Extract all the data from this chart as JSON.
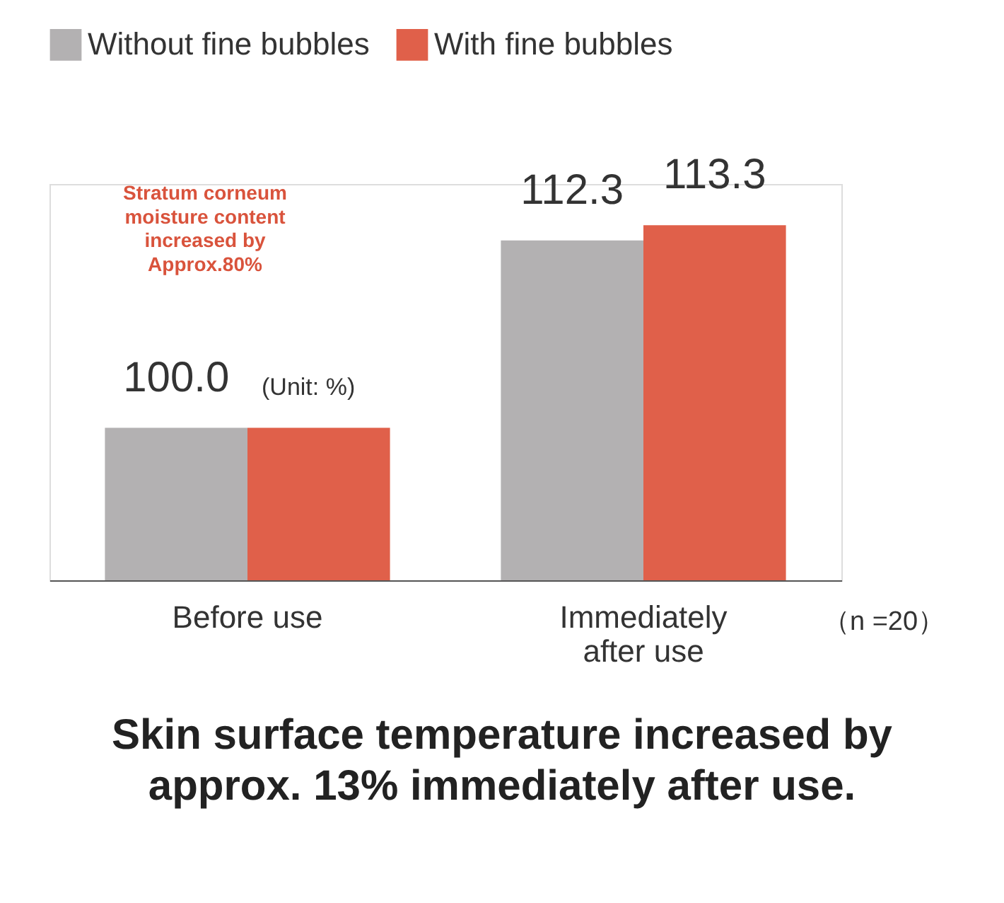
{
  "chart_data": {
    "type": "bar",
    "categories": [
      "Before use",
      "Immediately after use"
    ],
    "series": [
      {
        "name": "Without fine bubbles",
        "color": "#b3b1b2",
        "values": [
          100.0,
          112.3
        ],
        "value_labels": [
          "100.0",
          "112.3"
        ]
      },
      {
        "name": "With fine bubbles",
        "color": "#e0604a",
        "values": [
          100.0,
          113.3
        ],
        "value_labels": [
          null,
          "113.3"
        ]
      }
    ],
    "ylim": [
      90,
      116
    ],
    "tick_labels": "x",
    "grid": false,
    "legend": "top left",
    "annotations": [
      "(Unit: %)",
      "Stratum corneum moisture content increased by Approx.80%",
      "（n =20）",
      "Skin surface temperature increased by approx. 13% immediately after use."
    ]
  }
}
